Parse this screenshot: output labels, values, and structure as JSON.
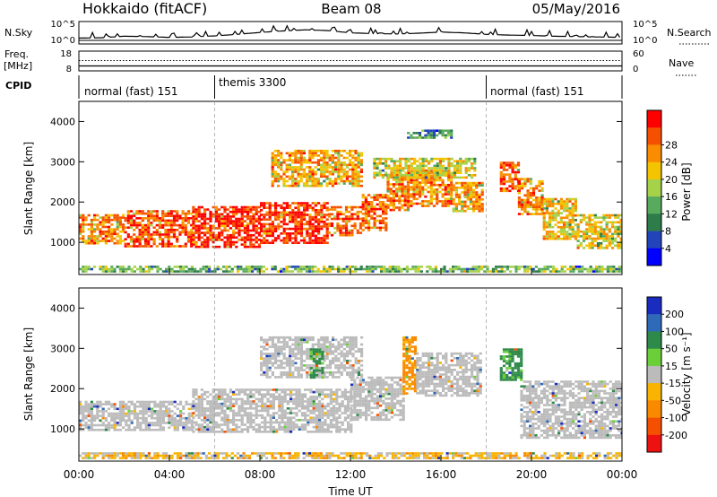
{
  "header": {
    "station": "Hokkaido (fitACF)",
    "beam": "Beam 08",
    "date": "05/May/2016"
  },
  "chart_data": [
    {
      "type": "line",
      "panel": "nsky-nsearch",
      "left_label": "N.Sky",
      "right_label": "N.Search",
      "left_ticks": [
        "10^5",
        "10^0"
      ],
      "right_ticks": [
        "10^5",
        "10^0"
      ],
      "x_range_hours": [
        0,
        24
      ],
      "series": [
        {
          "x": [
            0,
            1,
            2,
            3,
            4,
            5,
            6,
            7,
            8,
            9,
            10,
            11,
            12,
            13,
            14,
            15,
            16,
            17,
            18,
            19,
            20,
            21,
            22,
            23,
            24
          ],
          "y": [
            0.6,
            0.7,
            1.1,
            1.0,
            0.8,
            0.9,
            1.2,
            1.6,
            2.1,
            2.5,
            2.8,
            2.6,
            2.0,
            1.8,
            1.7,
            1.9,
            2.2,
            2.0,
            1.6,
            1.4,
            1.3,
            1.1,
            1.0,
            0.9,
            0.8
          ]
        }
      ]
    },
    {
      "type": "line",
      "panel": "freq-nave",
      "left_label_1": "Freq.",
      "left_label_2": "[MHz]",
      "right_label": "Nave",
      "left_ticks": [
        "18",
        "8"
      ],
      "right_ticks": [
        "60",
        "0"
      ],
      "series": [
        {
          "x": [
            0,
            24
          ],
          "y": [
            10.5,
            10.5
          ]
        },
        {
          "x": [
            0,
            24
          ],
          "y": [
            13.2,
            13.2
          ]
        }
      ]
    },
    {
      "type": "table",
      "panel": "cpid",
      "label": "CPID",
      "segments": [
        {
          "start": 0,
          "end": 6,
          "text": "normal (fast) 151"
        },
        {
          "start": 6,
          "end": 18,
          "text": "themis 3300"
        },
        {
          "start": 18,
          "end": 24,
          "text": "normal (fast) 151"
        }
      ]
    },
    {
      "type": "heatmap",
      "panel": "power",
      "ylabel": "Slant Range [km]",
      "ylim": [
        200,
        4500
      ],
      "yticks": [
        "1000",
        "2000",
        "3000",
        "4000"
      ],
      "xlim": [
        0,
        24
      ],
      "colorbar": {
        "label": "Power [dB]",
        "ticks": [
          "4",
          "8",
          "12",
          "16",
          "20",
          "24",
          "28"
        ],
        "colors": [
          "#0000ff",
          "#2244bb",
          "#2e7c4a",
          "#58aa5e",
          "#a6d24a",
          "#f4c400",
          "#f98c00",
          "#f55000",
          "#ff0000"
        ]
      },
      "regions": [
        {
          "x0": 0.0,
          "x1": 2.0,
          "y0": 950,
          "y1": 1700,
          "v": 24
        },
        {
          "x0": 2.0,
          "x1": 5.0,
          "y0": 900,
          "y1": 1800,
          "v": 27
        },
        {
          "x0": 5.0,
          "x1": 8.0,
          "y0": 900,
          "y1": 1900,
          "v": 29
        },
        {
          "x0": 8.0,
          "x1": 11.0,
          "y0": 1000,
          "y1": 2000,
          "v": 29
        },
        {
          "x0": 11.0,
          "x1": 12.5,
          "y0": 1200,
          "y1": 1900,
          "v": 26
        },
        {
          "x0": 12.5,
          "x1": 13.6,
          "y0": 1300,
          "y1": 2200,
          "v": 26
        },
        {
          "x0": 13.6,
          "x1": 14.5,
          "y0": 1800,
          "y1": 2700,
          "v": 25
        },
        {
          "x0": 14.5,
          "x1": 16.5,
          "y0": 1900,
          "y1": 2800,
          "v": 24
        },
        {
          "x0": 16.5,
          "x1": 17.8,
          "y0": 1800,
          "y1": 2500,
          "v": 23
        },
        {
          "x0": 8.5,
          "x1": 12.5,
          "y0": 2400,
          "y1": 3300,
          "v": 22
        },
        {
          "x0": 13.0,
          "x1": 17.5,
          "y0": 2600,
          "y1": 3100,
          "v": 18
        },
        {
          "x0": 14.5,
          "x1": 16.5,
          "y0": 3600,
          "y1": 3800,
          "v": 10
        },
        {
          "x0": 18.6,
          "x1": 19.4,
          "y0": 2300,
          "y1": 3000,
          "v": 26
        },
        {
          "x0": 19.4,
          "x1": 20.5,
          "y0": 1700,
          "y1": 2600,
          "v": 24
        },
        {
          "x0": 20.5,
          "x1": 22.0,
          "y0": 1100,
          "y1": 2100,
          "v": 20
        },
        {
          "x0": 22.0,
          "x1": 24.0,
          "y0": 850,
          "y1": 1700,
          "v": 19
        },
        {
          "x0": 0.0,
          "x1": 24.0,
          "y0": 250,
          "y1": 420,
          "v": 14
        }
      ]
    },
    {
      "type": "heatmap",
      "panel": "velocity",
      "ylabel": "Slant Range [km]",
      "ylim": [
        200,
        4500
      ],
      "yticks": [
        "1000",
        "2000",
        "3000",
        "4000"
      ],
      "xlim": [
        0,
        24
      ],
      "xticks": [
        "00:00",
        "04:00",
        "08:00",
        "12:00",
        "16:00",
        "20:00",
        "00:00"
      ],
      "xlabel": "Time UT",
      "colorbar": {
        "label": "Velocity [m s⁻¹]",
        "ticks": [
          "200",
          "100",
          "50",
          "15",
          "-15",
          "-50",
          "-100",
          "-200"
        ],
        "colors": [
          "#1a2bbf",
          "#2e6ab8",
          "#2e8a4a",
          "#6bcf3a",
          "#bbbbbb",
          "#f8b400",
          "#f98a00",
          "#f55000",
          "#ee1111"
        ]
      },
      "regions": [
        {
          "x0": 0.0,
          "x1": 5.0,
          "y0": 950,
          "y1": 1700,
          "v": 0
        },
        {
          "x0": 5.0,
          "x1": 12.0,
          "y0": 950,
          "y1": 2000,
          "v": 0
        },
        {
          "x0": 8.0,
          "x1": 12.5,
          "y0": 2300,
          "y1": 3300,
          "v": 0
        },
        {
          "x0": 12.0,
          "x1": 14.3,
          "y0": 1200,
          "y1": 2300,
          "v": 0
        },
        {
          "x0": 14.3,
          "x1": 14.9,
          "y0": 1900,
          "y1": 3300,
          "v": -40
        },
        {
          "x0": 14.9,
          "x1": 17.8,
          "y0": 1800,
          "y1": 2900,
          "v": 0
        },
        {
          "x0": 10.2,
          "x1": 10.8,
          "y0": 2300,
          "y1": 3000,
          "v": 40
        },
        {
          "x0": 18.6,
          "x1": 19.5,
          "y0": 2200,
          "y1": 3000,
          "v": 40
        },
        {
          "x0": 19.5,
          "x1": 24.0,
          "y0": 800,
          "y1": 2200,
          "v": 0
        },
        {
          "x0": 0.0,
          "x1": 24.0,
          "y0": 250,
          "y1": 420,
          "v": -20
        }
      ]
    }
  ]
}
